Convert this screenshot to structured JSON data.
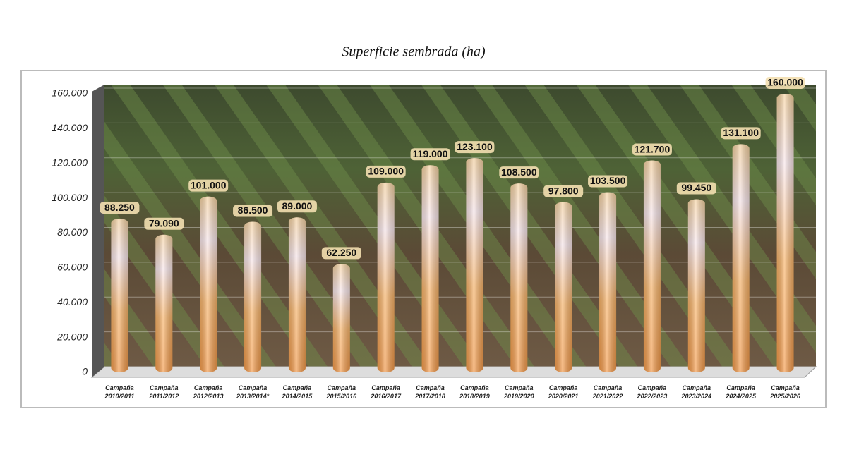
{
  "chart_data": {
    "type": "bar",
    "title": "Superficie sembrada (ha)",
    "categories": [
      "Campaña 2010/2011",
      "Campaña 2011/2012",
      "Campaña 2012/2013",
      "Campaña 2013/2014*",
      "Campaña 2014/2015",
      "Campaña 2015/2016",
      "Campaña 2016/2017",
      "Campaña 2017/2018",
      "Campaña 2018/2019",
      "Campaña 2019/2020",
      "Campaña 2020/2021",
      "Campaña 2021/2022",
      "Campaña 2022/2023",
      "Campaña 2023/2024",
      "Campaña 2024/2025",
      "Campaña 2025/2026"
    ],
    "values": [
      88250,
      79090,
      101000,
      86500,
      89000,
      62250,
      109000,
      119000,
      123100,
      108500,
      97800,
      103500,
      121700,
      99450,
      131100,
      160000
    ],
    "value_labels": [
      "88.250",
      "79.090",
      "101.000",
      "86.500",
      "89.000",
      "62.250",
      "109.000",
      "119.000",
      "123.100",
      "108.500",
      "97.800",
      "103.500",
      "121.700",
      "99.450",
      "131.100",
      "160.000"
    ],
    "color": "#f4a04a",
    "ylim": [
      0,
      160000
    ],
    "yticks": [
      0,
      {
        "value": 20000,
        "label": "20.000"
      },
      {
        "value": 40000,
        "label": "40.000"
      },
      {
        "value": 60000,
        "label": "60.000"
      },
      {
        "value": 80000,
        "label": "80.000"
      },
      {
        "value": 100000,
        "label": "100.000"
      },
      {
        "value": 120000,
        "label": "120.000"
      },
      {
        "value": 140000,
        "label": "140.000"
      },
      {
        "value": 160000,
        "label": "160.000"
      }
    ],
    "grid": true
  }
}
